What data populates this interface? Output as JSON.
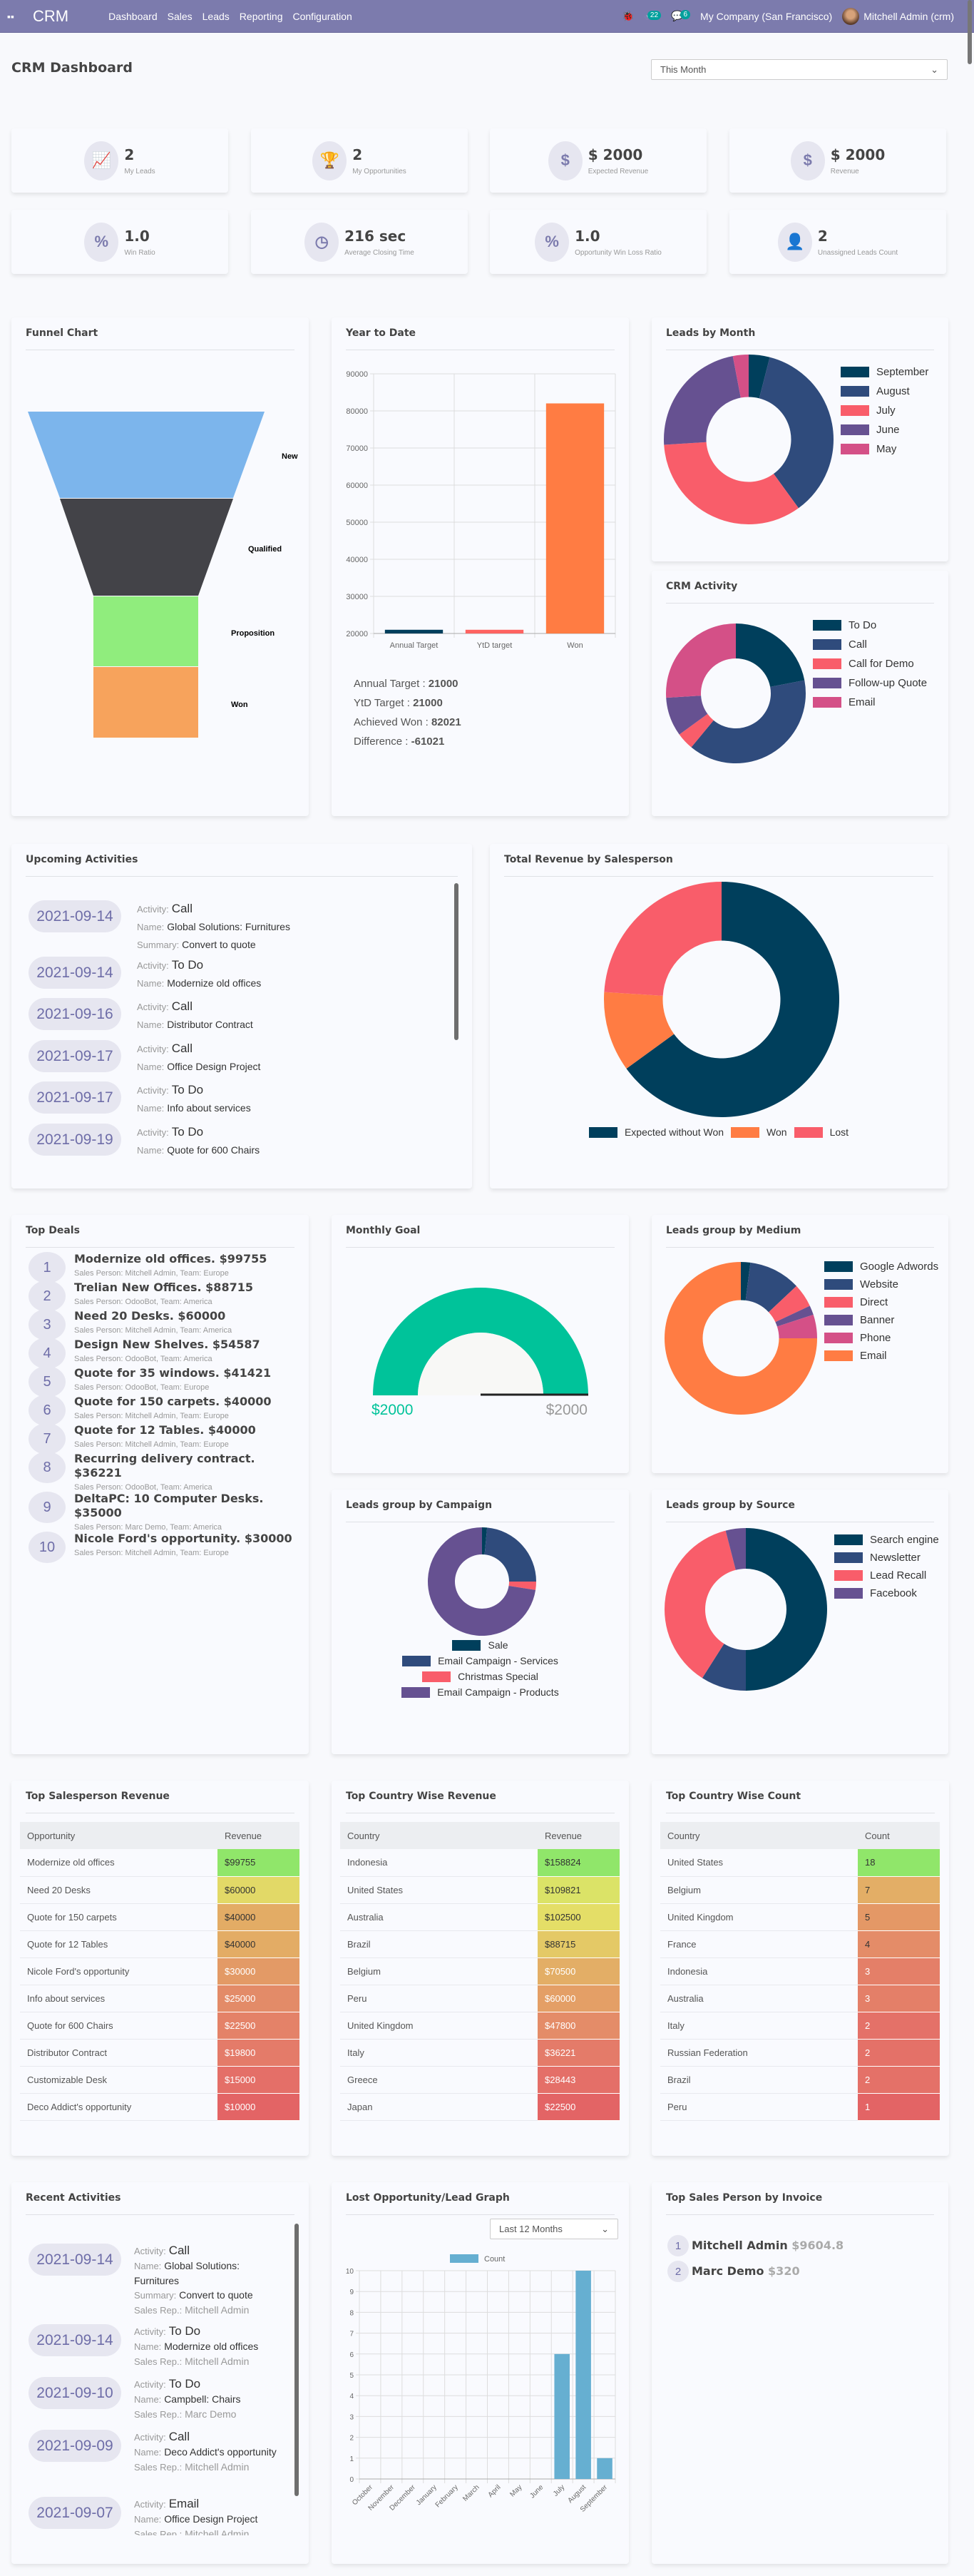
{
  "nav": {
    "brand": "CRM",
    "menu": [
      "Dashboard",
      "Sales",
      "Leads",
      "Reporting",
      "Configuration"
    ],
    "activity_badge": "22",
    "message_badge": "6",
    "company": "My Company (San Francisco)",
    "user": "Mitchell Admin (crm)"
  },
  "page": {
    "title": "CRM Dashboard",
    "filter": "This Month"
  },
  "kpis": [
    {
      "icon": "chart-line-icon",
      "glyph": "📈",
      "value": "2",
      "label": "My Leads"
    },
    {
      "icon": "trophy-icon",
      "glyph": "🏆",
      "value": "2",
      "label": "My Opportunities"
    },
    {
      "icon": "dollar-icon",
      "glyph": "$",
      "value": "$ 2000",
      "label": "Expected Revenue"
    },
    {
      "icon": "dollar-icon",
      "glyph": "$",
      "value": "$ 2000",
      "label": "Revenue"
    },
    {
      "icon": "percent-icon",
      "glyph": "%",
      "value": "1.0",
      "label": "Win Ratio"
    },
    {
      "icon": "clock-icon",
      "glyph": "◷",
      "value": "216 sec",
      "label": "Average Closing Time"
    },
    {
      "icon": "percent-icon",
      "glyph": "%",
      "value": "1.0",
      "label": "Opportunity Win Loss Ratio"
    },
    {
      "icon": "user-x-icon",
      "glyph": "👤",
      "value": "2",
      "label": "Unassigned Leads Count"
    }
  ],
  "funnel": {
    "title": "Funnel Chart",
    "stages": [
      {
        "label": "New",
        "color": "#7cb5ec"
      },
      {
        "label": "Qualified",
        "color": "#434348"
      },
      {
        "label": "Proposition",
        "color": "#90ed7d"
      },
      {
        "label": "Won",
        "color": "#f7a35c"
      }
    ]
  },
  "ytd": {
    "title": "Year to Date",
    "summary": [
      {
        "label": "Annual Target : ",
        "value": "21000"
      },
      {
        "label": "YtD Target : ",
        "value": "21000"
      },
      {
        "label": "Achieved Won : ",
        "value": "82021"
      },
      {
        "label": "Difference : ",
        "value": "-61021"
      }
    ]
  },
  "chart_data": [
    {
      "id": "ytd",
      "type": "bar",
      "categories": [
        "Annual Target",
        "YtD target",
        "Won"
      ],
      "values": [
        21000,
        21000,
        82021
      ],
      "colors": [
        "#003f5c",
        "#ff6361",
        "#ff7c43"
      ],
      "ylim": [
        20000,
        90000
      ],
      "yticks": [
        20000,
        30000,
        40000,
        50000,
        60000,
        70000,
        80000,
        90000
      ],
      "grid": true
    },
    {
      "id": "leads_by_month",
      "type": "pie",
      "title": "Leads by Month",
      "labels": [
        "September",
        "August",
        "July",
        "June",
        "May"
      ],
      "values": [
        4,
        36,
        34,
        23,
        3
      ],
      "colors": [
        "#003f5c",
        "#2f4b7c",
        "#f95d6a",
        "#665191",
        "#d45087"
      ],
      "legend": "right"
    },
    {
      "id": "crm_activity",
      "type": "pie",
      "title": "CRM Activity",
      "labels": [
        "To Do",
        "Call",
        "Call for Demo",
        "Follow-up Quote",
        "Email"
      ],
      "values": [
        22,
        39,
        4,
        9,
        26
      ],
      "colors": [
        "#003f5c",
        "#2f4b7c",
        "#f95d6a",
        "#665191",
        "#d45087"
      ],
      "legend": "right"
    },
    {
      "id": "revenue_salesperson",
      "type": "pie",
      "title": "Total Revenue by Salesperson",
      "labels": [
        "Expected without Won",
        "Won",
        "Lost"
      ],
      "values": [
        65,
        11,
        24
      ],
      "colors": [
        "#003f5c",
        "#ff7c43",
        "#f95d6a"
      ],
      "legend": "bottom"
    },
    {
      "id": "leads_medium",
      "type": "pie",
      "title": "Leads group by Medium",
      "labels": [
        "Google Adwords",
        "Website",
        "Direct",
        "Banner",
        "Phone",
        "Email"
      ],
      "values": [
        2,
        11,
        5,
        2,
        5,
        75
      ],
      "colors": [
        "#003f5c",
        "#2f4b7c",
        "#f95d6a",
        "#665191",
        "#d45087",
        "#ff7c43"
      ],
      "legend": "right"
    },
    {
      "id": "leads_campaign",
      "type": "pie",
      "title": "Leads group by Campaign",
      "labels": [
        "Sale",
        "Email Campaign - Services",
        "Christmas Special",
        "Email Campaign - Products"
      ],
      "values": [
        1.5,
        23.5,
        2.5,
        72.5
      ],
      "colors": [
        "#003f5c",
        "#2f4b7c",
        "#f95d6a",
        "#665191"
      ],
      "legend": "bottom"
    },
    {
      "id": "leads_source",
      "type": "pie",
      "title": "Leads group by Source",
      "labels": [
        "Search engine",
        "Newsletter",
        "Lead Recall",
        "Facebook"
      ],
      "values": [
        50,
        9,
        37,
        4
      ],
      "colors": [
        "#003f5c",
        "#2f4b7c",
        "#f95d6a",
        "#665191"
      ],
      "legend": "right"
    },
    {
      "id": "lost_graph",
      "type": "bar",
      "title": "Lost Opportunity/Lead Graph",
      "series_name": "Count",
      "categories": [
        "October",
        "November",
        "December",
        "January",
        "February",
        "March",
        "April",
        "May",
        "June",
        "July",
        "August",
        "September"
      ],
      "values": [
        0,
        0,
        0,
        0,
        0,
        0,
        0,
        0,
        0,
        6,
        10,
        1
      ],
      "color": "#66afd1",
      "ylim": [
        0,
        10
      ],
      "yticks": [
        0,
        1,
        2,
        3,
        4,
        5,
        6,
        7,
        8,
        9,
        10
      ],
      "grid": true,
      "legend": "top"
    }
  ],
  "monthly_goal": {
    "title": "Monthly Goal",
    "achieved": "$2000",
    "target": "$2000",
    "fraction": 1.0,
    "color": "#00c39a"
  },
  "upcoming": {
    "title": "Upcoming Activities",
    "items": [
      {
        "date": "2021-09-14",
        "activity": "Call",
        "name": "Global Solutions: Furnitures",
        "summary": "Convert to quote"
      },
      {
        "date": "2021-09-14",
        "activity": "To Do",
        "name": "Modernize old offices"
      },
      {
        "date": "2021-09-16",
        "activity": "Call",
        "name": "Distributor Contract"
      },
      {
        "date": "2021-09-17",
        "activity": "Call",
        "name": "Office Design Project"
      },
      {
        "date": "2021-09-17",
        "activity": "To Do",
        "name": "Info about services"
      },
      {
        "date": "2021-09-19",
        "activity": "To Do",
        "name": "Quote for 600 Chairs"
      }
    ],
    "k_activity": "Activity:",
    "k_name": "Name:",
    "k_summary": "Summary:",
    "k_rep": "Sales Rep.:"
  },
  "deals": {
    "title": "Top Deals",
    "items": [
      {
        "rank": "1",
        "title": "Modernize old offices. $99755",
        "sub": "Sales Person: Mitchell Admin,  Team: Europe"
      },
      {
        "rank": "2",
        "title": "Trelian New Offices. $88715",
        "sub": "Sales Person: OdooBot,  Team: America"
      },
      {
        "rank": "3",
        "title": "Need 20 Desks. $60000",
        "sub": "Sales Person: Mitchell Admin,  Team: America"
      },
      {
        "rank": "4",
        "title": "Design New Shelves. $54587",
        "sub": "Sales Person: OdooBot,  Team: America"
      },
      {
        "rank": "5",
        "title": "Quote for 35 windows. $41421",
        "sub": "Sales Person: OdooBot,  Team: Europe"
      },
      {
        "rank": "6",
        "title": "Quote for 150 carpets. $40000",
        "sub": "Sales Person: Mitchell Admin,  Team: Europe"
      },
      {
        "rank": "7",
        "title": "Quote for 12 Tables. $40000",
        "sub": "Sales Person: Mitchell Admin,  Team: Europe"
      },
      {
        "rank": "8",
        "title": "Recurring delivery contract. $36221",
        "sub": "Sales Person: OdooBot,  Team: America"
      },
      {
        "rank": "9",
        "title": "DeltaPC: 10 Computer Desks. $35000",
        "sub": "Sales Person: Marc Demo,  Team: America"
      },
      {
        "rank": "10",
        "title": "Nicole Ford's opportunity. $30000",
        "sub": "Sales Person: Mitchell Admin,  Team: Europe"
      }
    ]
  },
  "tables": [
    {
      "title": "Top Salesperson Revenue",
      "headers": [
        "Opportunity",
        "Revenue"
      ],
      "rows": [
        [
          "Modernize old offices",
          "$99755",
          "#90e66a"
        ],
        [
          "Need 20 Desks",
          "$60000",
          "#e2d967"
        ],
        [
          "Quote for 150 carpets",
          "$40000",
          "#e3ac65"
        ],
        [
          "Quote for 12 Tables",
          "$40000",
          "#e3ac65"
        ],
        [
          "Nicole Ford's opportunity",
          "$30000",
          "#e39a66"
        ],
        [
          "Info about services",
          "$25000",
          "#e38b68"
        ],
        [
          "Quote for 600 Chairs",
          "$22500",
          "#e48268"
        ],
        [
          "Distributor Contract",
          "$19800",
          "#e47b69"
        ],
        [
          "Customizable Desk",
          "$15000",
          "#e46f68"
        ],
        [
          "Deco Addict's opportunity",
          "$10000",
          "#e36465"
        ]
      ]
    },
    {
      "title": "Top Country Wise Revenue",
      "headers": [
        "Country",
        "Revenue"
      ],
      "rows": [
        [
          "Indonesia",
          "$158824",
          "#90e66a"
        ],
        [
          "United States",
          "$109821",
          "#dbe367"
        ],
        [
          "Australia",
          "$102500",
          "#e4de67"
        ],
        [
          "Brazil",
          "$88715",
          "#e4c966"
        ],
        [
          "Belgium",
          "$70500",
          "#e3ae66"
        ],
        [
          "Peru",
          "$60000",
          "#e49f66"
        ],
        [
          "United Kingdom",
          "$47800",
          "#e48c68"
        ],
        [
          "Italy",
          "$36221",
          "#e47b69"
        ],
        [
          "Greece",
          "$28443",
          "#e46f68"
        ],
        [
          "Japan",
          "$22500",
          "#e36465"
        ]
      ]
    },
    {
      "title": "Top Country Wise Count",
      "headers": [
        "Country",
        "Count"
      ],
      "rows": [
        [
          "United States",
          "18",
          "#90e66a"
        ],
        [
          "Belgium",
          "7",
          "#e3ae66"
        ],
        [
          "United Kingdom",
          "5",
          "#e49866"
        ],
        [
          "France",
          "4",
          "#e48c68"
        ],
        [
          "Indonesia",
          "3",
          "#e47f68"
        ],
        [
          "Australia",
          "3",
          "#e47f68"
        ],
        [
          "Italy",
          "2",
          "#e47168"
        ],
        [
          "Russian Federation",
          "2",
          "#e47168"
        ],
        [
          "Brazil",
          "2",
          "#e47168"
        ],
        [
          "Peru",
          "1",
          "#e36465"
        ]
      ]
    }
  ],
  "recent": {
    "title": "Recent Activities",
    "items": [
      {
        "date": "2021-09-14",
        "activity": "Call",
        "name": "Global Solutions: Furnitures",
        "summary": "Convert to quote",
        "rep": "Mitchell Admin"
      },
      {
        "date": "2021-09-14",
        "activity": "To Do",
        "name": "Modernize old offices",
        "rep": "Mitchell Admin"
      },
      {
        "date": "2021-09-10",
        "activity": "To Do",
        "name": "Campbell: Chairs",
        "rep": "Marc Demo"
      },
      {
        "date": "2021-09-09",
        "activity": "Call",
        "name": "Deco Addict's opportunity",
        "rep": "Mitchell Admin"
      },
      {
        "date": "2021-09-07",
        "activity": "Email",
        "name": "Office Design Project",
        "rep": "Mitchell Admin"
      }
    ]
  },
  "lost": {
    "filter": "Last 12 Months"
  },
  "top_invoice": {
    "title": "Top Sales Person by Invoice",
    "items": [
      {
        "rank": "1",
        "name": "Mitchell Admin",
        "amount": "$9604.8"
      },
      {
        "rank": "2",
        "name": "Marc Demo",
        "amount": "$320"
      }
    ]
  }
}
